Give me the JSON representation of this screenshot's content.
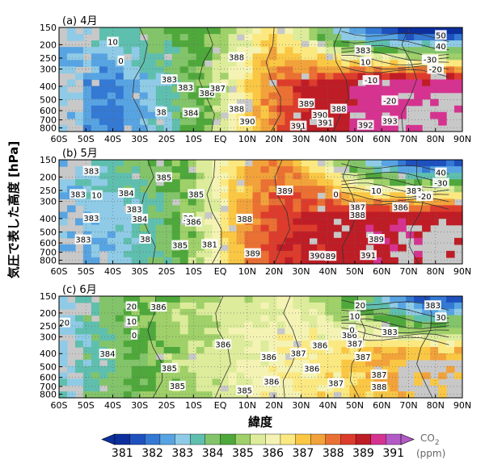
{
  "figure": {
    "ylabel": "気圧で表した高度 [hPa]",
    "xlabel": "緯度",
    "colorbar_unit_line1": "CO",
    "colorbar_unit_sub": "2",
    "colorbar_unit_line2": "(ppm)"
  },
  "chart_data": [
    {
      "type": "heatmap",
      "title": "(a) 4月",
      "x_ticks": [
        "60S",
        "50S",
        "40S",
        "30S",
        "20S",
        "10S",
        "EQ",
        "10N",
        "20N",
        "30N",
        "40N",
        "50N",
        "60N",
        "70N",
        "80N",
        "90N"
      ],
      "y_ticks": [
        "150",
        "200",
        "250",
        "300",
        "400",
        "500",
        "600",
        "700",
        "800"
      ],
      "xlim": [
        -60,
        90
      ],
      "ylim_hPa": [
        850,
        150
      ],
      "field_anchors": [
        [
          -60,
          383
        ],
        [
          -40,
          382.3
        ],
        [
          -20,
          383.6
        ],
        [
          -5,
          385
        ],
        [
          5,
          386.2
        ],
        [
          15,
          387.6
        ],
        [
          30,
          389
        ],
        [
          45,
          389.6
        ],
        [
          55,
          390.5
        ],
        [
          90,
          390.5
        ]
      ],
      "field_anchors_upper": [
        [
          -60,
          383
        ],
        [
          0,
          385
        ],
        [
          20,
          387
        ],
        [
          35,
          385
        ],
        [
          50,
          382.5
        ],
        [
          65,
          381.5
        ],
        [
          90,
          381
        ]
      ],
      "contour_labels": [
        {
          "text": "10",
          "lat": -40,
          "p": 190
        },
        {
          "text": "0",
          "lat": -37,
          "p": 260
        },
        {
          "text": "383",
          "lat": -19,
          "p": 355
        },
        {
          "text": "383",
          "lat": -13,
          "p": 405
        },
        {
          "text": "384",
          "lat": -11,
          "p": 620
        },
        {
          "text": "38",
          "lat": -22,
          "p": 610
        },
        {
          "text": "386",
          "lat": -5,
          "p": 445
        },
        {
          "text": "387",
          "lat": -1,
          "p": 410
        },
        {
          "text": "388",
          "lat": 6,
          "p": 245
        },
        {
          "text": "388",
          "lat": 6,
          "p": 580
        },
        {
          "text": "390",
          "lat": 10,
          "p": 715
        },
        {
          "text": "389",
          "lat": 32,
          "p": 530
        },
        {
          "text": "390",
          "lat": 37,
          "p": 640
        },
        {
          "text": "391",
          "lat": 29,
          "p": 770
        },
        {
          "text": "391",
          "lat": 39,
          "p": 730
        },
        {
          "text": "388",
          "lat": 44,
          "p": 580
        },
        {
          "text": "392",
          "lat": 54,
          "p": 760
        },
        {
          "text": "393",
          "lat": 63,
          "p": 710
        },
        {
          "text": "383",
          "lat": 53,
          "p": 218
        },
        {
          "text": "10",
          "lat": 54,
          "p": 265
        },
        {
          "text": "-10",
          "lat": 56,
          "p": 360
        },
        {
          "text": "-20",
          "lat": 63,
          "p": 505
        },
        {
          "text": "50",
          "lat": 82,
          "p": 170
        },
        {
          "text": "40",
          "lat": 82,
          "p": 205
        },
        {
          "text": "-30",
          "lat": 78,
          "p": 255
        },
        {
          "text": "-20",
          "lat": 80,
          "p": 300
        }
      ]
    },
    {
      "type": "heatmap",
      "title": "(b) 5月",
      "x_ticks": [
        "60S",
        "50S",
        "40S",
        "30S",
        "20S",
        "10S",
        "EQ",
        "10N",
        "20N",
        "30N",
        "40N",
        "50N",
        "60N",
        "70N",
        "80N",
        "90N"
      ],
      "y_ticks": [
        "150",
        "200",
        "250",
        "300",
        "400",
        "500",
        "600",
        "700",
        "800"
      ],
      "xlim": [
        -60,
        90
      ],
      "ylim_hPa": [
        850,
        150
      ],
      "field_anchors": [
        [
          -60,
          382.8
        ],
        [
          -40,
          383.2
        ],
        [
          -20,
          384.2
        ],
        [
          -5,
          385.8
        ],
        [
          5,
          387.2
        ],
        [
          15,
          388.4
        ],
        [
          30,
          389.1
        ],
        [
          45,
          389.4
        ],
        [
          60,
          389.9
        ],
        [
          90,
          390
        ]
      ],
      "field_anchors_upper": [
        [
          -60,
          383
        ],
        [
          -10,
          385
        ],
        [
          10,
          387.5
        ],
        [
          25,
          388
        ],
        [
          40,
          386
        ],
        [
          55,
          383.5
        ],
        [
          70,
          382
        ],
        [
          90,
          382
        ]
      ],
      "contour_labels": [
        {
          "text": "383",
          "lat": -48,
          "p": 180
        },
        {
          "text": "383",
          "lat": -53,
          "p": 265
        },
        {
          "text": "10",
          "lat": -46,
          "p": 270
        },
        {
          "text": "384",
          "lat": -35,
          "p": 260
        },
        {
          "text": "383",
          "lat": -32,
          "p": 340
        },
        {
          "text": "383",
          "lat": -48,
          "p": 395
        },
        {
          "text": "383",
          "lat": -51,
          "p": 565
        },
        {
          "text": "384",
          "lat": -30,
          "p": 400
        },
        {
          "text": "38",
          "lat": -28,
          "p": 560
        },
        {
          "text": "385",
          "lat": -21,
          "p": 200
        },
        {
          "text": "385",
          "lat": -9,
          "p": 265
        },
        {
          "text": "38",
          "lat": -12,
          "p": 395
        },
        {
          "text": "386",
          "lat": -10,
          "p": 420
        },
        {
          "text": "385",
          "lat": -15,
          "p": 620
        },
        {
          "text": "381",
          "lat": -4,
          "p": 610
        },
        {
          "text": "388",
          "lat": 9,
          "p": 400
        },
        {
          "text": "389",
          "lat": 24,
          "p": 250
        },
        {
          "text": "389",
          "lat": 12,
          "p": 710
        },
        {
          "text": "0",
          "lat": 43,
          "p": 265
        },
        {
          "text": "387",
          "lat": 51,
          "p": 330
        },
        {
          "text": "388",
          "lat": 51,
          "p": 375
        },
        {
          "text": "389",
          "lat": 58,
          "p": 560
        },
        {
          "text": "390",
          "lat": 36,
          "p": 740
        },
        {
          "text": "89",
          "lat": 41,
          "p": 745
        },
        {
          "text": "391",
          "lat": 55,
          "p": 735
        },
        {
          "text": "10",
          "lat": 58,
          "p": 250
        },
        {
          "text": "383",
          "lat": 72,
          "p": 250
        },
        {
          "text": "386",
          "lat": 67,
          "p": 330
        },
        {
          "text": "-20",
          "lat": 76,
          "p": 275
        },
        {
          "text": "40",
          "lat": 82,
          "p": 185
        },
        {
          "text": "-30",
          "lat": 82,
          "p": 220
        }
      ]
    },
    {
      "type": "heatmap",
      "title": "(c) 6月",
      "x_ticks": [
        "60S",
        "50S",
        "40S",
        "30S",
        "20S",
        "10S",
        "EQ",
        "10N",
        "20N",
        "30N",
        "40N",
        "50N",
        "60N",
        "70N",
        "80N",
        "90N"
      ],
      "y_ticks": [
        "150",
        "200",
        "250",
        "300",
        "400",
        "500",
        "600",
        "700",
        "800"
      ],
      "xlim": [
        -60,
        90
      ],
      "ylim_hPa": [
        850,
        150
      ],
      "field_anchors": [
        [
          -60,
          383.2
        ],
        [
          -40,
          384.2
        ],
        [
          -20,
          385.2
        ],
        [
          0,
          385.8
        ],
        [
          15,
          386.2
        ],
        [
          30,
          386.6
        ],
        [
          45,
          386.8
        ],
        [
          60,
          387.5
        ],
        [
          90,
          387.5
        ]
      ],
      "field_anchors_upper": [
        [
          -60,
          383
        ],
        [
          -30,
          385
        ],
        [
          0,
          385.5
        ],
        [
          25,
          386
        ],
        [
          45,
          385
        ],
        [
          60,
          383.5
        ],
        [
          75,
          382
        ],
        [
          90,
          382
        ]
      ],
      "contour_labels": [
        {
          "text": "20",
          "lat": -58,
          "p": 235
        },
        {
          "text": "20",
          "lat": -33,
          "p": 178
        },
        {
          "text": "10",
          "lat": -33,
          "p": 230
        },
        {
          "text": "0",
          "lat": -32,
          "p": 290
        },
        {
          "text": "386",
          "lat": -23,
          "p": 180
        },
        {
          "text": "384",
          "lat": -42,
          "p": 400
        },
        {
          "text": "385",
          "lat": -19,
          "p": 510
        },
        {
          "text": "385",
          "lat": -16,
          "p": 690
        },
        {
          "text": "386",
          "lat": 1,
          "p": 340
        },
        {
          "text": "385",
          "lat": 9,
          "p": 745
        },
        {
          "text": "386",
          "lat": 18,
          "p": 420
        },
        {
          "text": "387",
          "lat": 29,
          "p": 395
        },
        {
          "text": "386",
          "lat": 37,
          "p": 345
        },
        {
          "text": "386",
          "lat": 34,
          "p": 515
        },
        {
          "text": "386",
          "lat": 19,
          "p": 640
        },
        {
          "text": "387",
          "lat": 43,
          "p": 660
        },
        {
          "text": "386",
          "lat": 48,
          "p": 290
        },
        {
          "text": "387",
          "lat": 50,
          "p": 335
        },
        {
          "text": "387",
          "lat": 53,
          "p": 420
        },
        {
          "text": "387",
          "lat": 59,
          "p": 570
        },
        {
          "text": "388",
          "lat": 59,
          "p": 700
        },
        {
          "text": "20",
          "lat": 52,
          "p": 175
        },
        {
          "text": "10",
          "lat": 50,
          "p": 210
        },
        {
          "text": "0",
          "lat": 49,
          "p": 265
        },
        {
          "text": "383",
          "lat": 79,
          "p": 175
        },
        {
          "text": "383",
          "lat": 63,
          "p": 275
        },
        {
          "text": "30",
          "lat": 82,
          "p": 215
        }
      ]
    }
  ],
  "colorbar": {
    "tick_labels": [
      "381",
      "382",
      "383",
      "384",
      "385",
      "386",
      "387",
      "388",
      "389",
      "391"
    ],
    "colors": [
      "#0d2f9e",
      "#1f51be",
      "#3479d3",
      "#58a4e2",
      "#8fcbe6",
      "#5fbfae",
      "#83c46a",
      "#4fa83b",
      "#9fd069",
      "#dcec9b",
      "#f4f3b4",
      "#fbe880",
      "#f9c744",
      "#f2a23a",
      "#ea7033",
      "#dd3c2c",
      "#bf1d26",
      "#d63390",
      "#b25ac6"
    ]
  }
}
